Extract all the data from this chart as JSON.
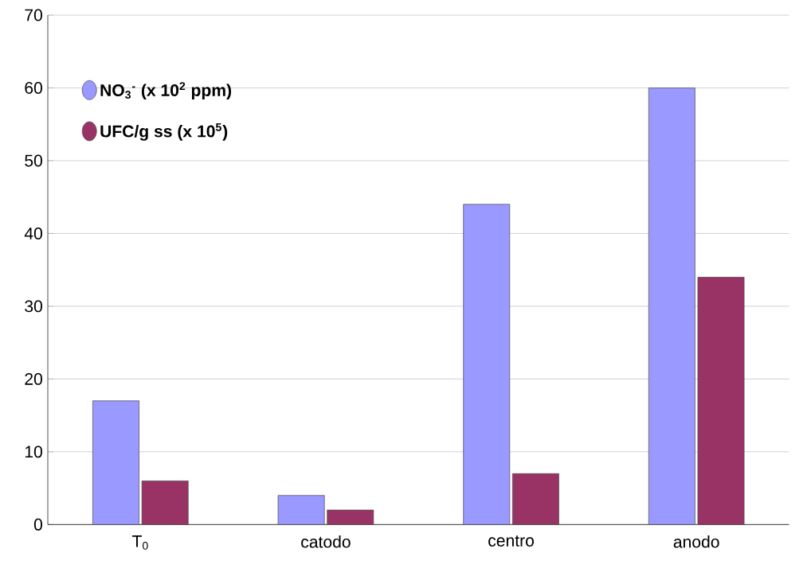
{
  "chart_data": {
    "type": "bar",
    "categories": [
      "T$_{0}$",
      "catodo",
      "centro",
      "anodo"
    ],
    "series": [
      {
        "name": "NO$_{3}$$^{-}$ (x 10$^{2}$ ppm)",
        "color": "#9999ff",
        "values": [
          17,
          4,
          44,
          60
        ]
      },
      {
        "name": "UFC/g ss (x 10$^{5}$)",
        "color": "#993366",
        "values": [
          6,
          2,
          7,
          34
        ]
      }
    ],
    "ylim": [
      0,
      70
    ],
    "yticks": [
      0,
      10,
      20,
      30,
      40,
      50,
      60,
      70
    ],
    "grid": "y",
    "legend": "top left"
  }
}
